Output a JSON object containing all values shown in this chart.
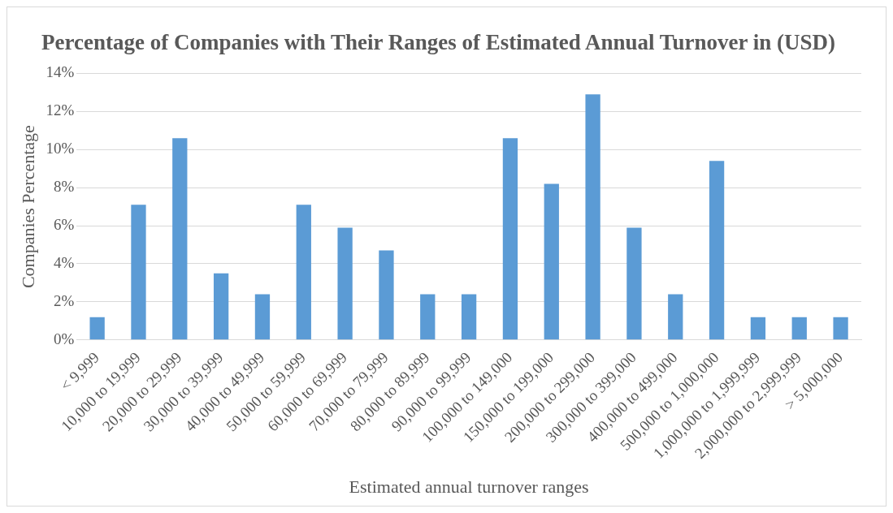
{
  "chart_data": {
    "type": "bar",
    "title": "Percentage of Companies with Their Ranges of Estimated Annual Turnover in (USD)",
    "xlabel": "Estimated annual turnover ranges",
    "ylabel": "Companies Percentage",
    "categories": [
      "< 9,999",
      "10,000 to 19,999",
      "20,000 to 29,999",
      "30,000 to 39,999",
      "40,000 to 49,999",
      "50,000 to 59,999",
      "60,000 to 69,999",
      "70,000 to 79,999",
      "80,000 to 89,999",
      "90,000 to 99,999",
      "100,000 to 149,000",
      "150,000 to 199,000",
      "200,000 to 299,000",
      "300,000 to 399,000",
      "400,000 to 499,000",
      "500,000 to 1,000,000",
      "1,000,000 to 1,999,999",
      "2,000,000 to 2,999,999",
      "> 5,000,000"
    ],
    "values": [
      1.2,
      7.1,
      10.6,
      3.5,
      2.4,
      7.1,
      5.9,
      4.7,
      2.4,
      2.4,
      10.6,
      8.2,
      12.9,
      5.9,
      2.4,
      9.4,
      1.2,
      1.2,
      1.2
    ],
    "color": "#5b9bd5",
    "ylim": [
      0,
      14
    ],
    "yticks": [
      {
        "value": 0,
        "label": "0%"
      },
      {
        "value": 2,
        "label": "2%"
      },
      {
        "value": 4,
        "label": "4%"
      },
      {
        "value": 6,
        "label": "6%"
      },
      {
        "value": 8,
        "label": "8%"
      },
      {
        "value": 10,
        "label": "10%"
      },
      {
        "value": 12,
        "label": "12%"
      },
      {
        "value": 14,
        "label": "14%"
      }
    ],
    "grid": "y"
  }
}
